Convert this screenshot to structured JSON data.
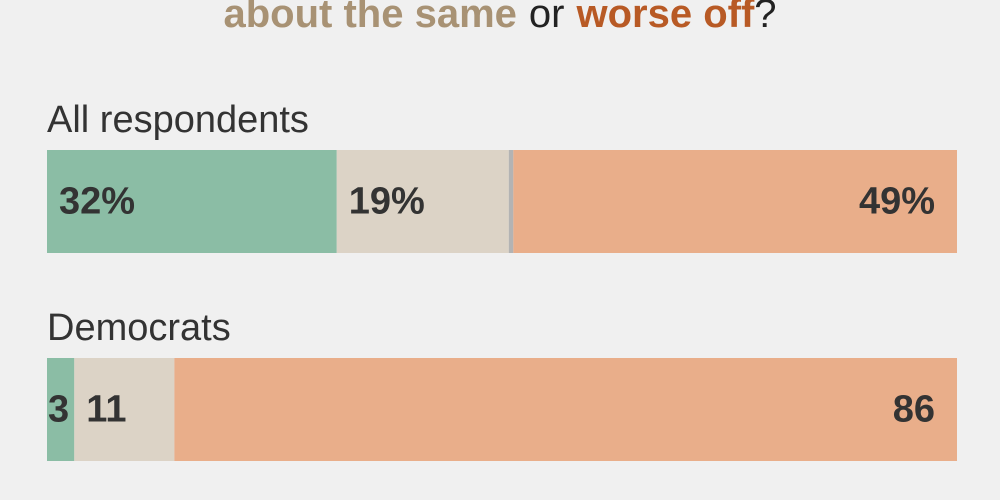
{
  "chart_data": {
    "type": "stacked-bar",
    "title_parts": [
      {
        "text": "about the same",
        "color": "#a89274"
      },
      {
        "text": "or"
      },
      {
        "text": "worse off",
        "color": "#b85a25"
      },
      {
        "text": "?"
      }
    ],
    "categories": [
      "All respondents",
      "Democrats"
    ],
    "series": [
      {
        "color": "#8bbda5",
        "values": [
          32,
          3
        ],
        "value_labels": [
          "32%",
          "3"
        ]
      },
      {
        "color": "#dcd3c6",
        "values": [
          19,
          11
        ],
        "value_labels": [
          "19%",
          "11"
        ]
      },
      {
        "color": "#b3b3b3",
        "values": [
          0.5,
          0
        ]
      },
      {
        "color": "#e9ae8a",
        "values": [
          49,
          86
        ],
        "value_labels": [
          "49%",
          "86"
        ]
      }
    ]
  }
}
